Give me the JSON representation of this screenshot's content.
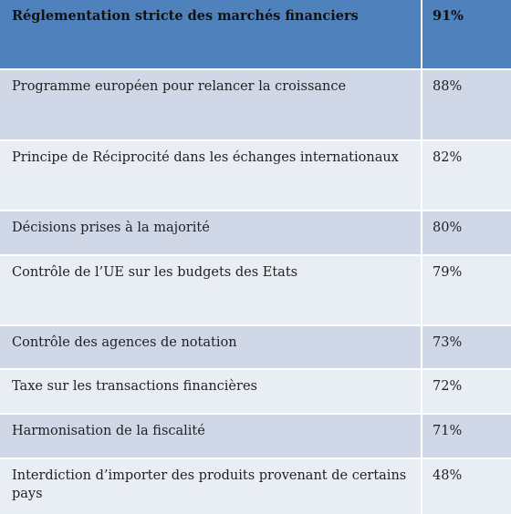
{
  "table": {
    "header": {
      "label": "Réglementation stricte des marchés financiers",
      "value": "91%"
    },
    "rows": [
      {
        "label": "Programme européen pour relancer la croissance",
        "value": "88%"
      },
      {
        "label": "Principe de Réciprocité dans les échanges internationaux",
        "value": "82%"
      },
      {
        "label": "Décisions prises à la majorité",
        "value": "80%"
      },
      {
        "label": "Contrôle de l’UE sur les budgets des Etats",
        "value": "79%"
      },
      {
        "label": "Contrôle des agences de notation",
        "value": "73%"
      },
      {
        "label": "Taxe sur les transactions financières",
        "value": "72%"
      },
      {
        "label": "Harmonisation de la fiscalité",
        "value": "71%"
      },
      {
        "label": "Interdiction d’importer des produits provenant de certains pays",
        "value": "48%"
      }
    ]
  },
  "colors": {
    "header_bg": "#4f81bd",
    "row_dark": "#d0d8e8",
    "row_light": "#e9edf4"
  }
}
